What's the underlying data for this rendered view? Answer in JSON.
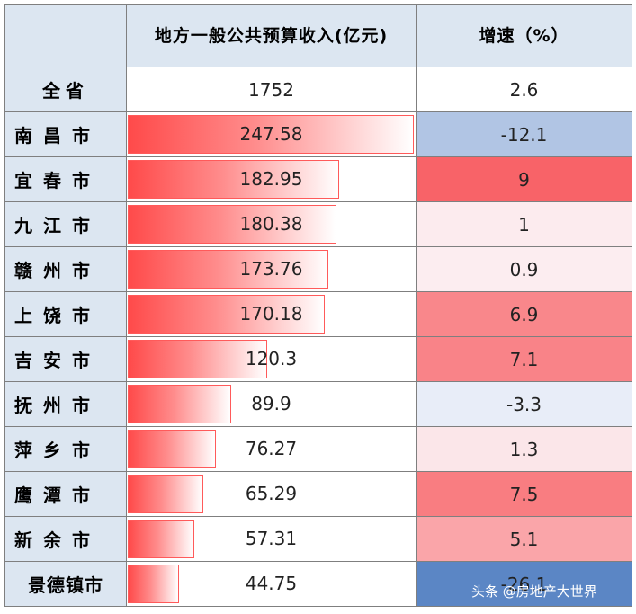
{
  "chart_data": {
    "type": "table",
    "columns": [
      "",
      "地方一般公共预算收入(亿元)",
      "增速（%）"
    ],
    "total": {
      "name": "全省",
      "revenue": "1752",
      "growth": "2.6"
    },
    "rows": [
      {
        "name": "南昌市",
        "revenue": 247.58,
        "revenue_text": "247.58",
        "growth": -12.1,
        "growth_text": "-12.1"
      },
      {
        "name": "宜春市",
        "revenue": 182.95,
        "revenue_text": "182.95",
        "growth": 9,
        "growth_text": "9"
      },
      {
        "name": "九江市",
        "revenue": 180.38,
        "revenue_text": "180.38",
        "growth": 1,
        "growth_text": "1"
      },
      {
        "name": "赣州市",
        "revenue": 173.76,
        "revenue_text": "173.76",
        "growth": 0.9,
        "growth_text": "0.9"
      },
      {
        "name": "上饶市",
        "revenue": 170.18,
        "revenue_text": "170.18",
        "growth": 6.9,
        "growth_text": "6.9"
      },
      {
        "name": "吉安市",
        "revenue": 120.3,
        "revenue_text": "120.3",
        "growth": 7.1,
        "growth_text": "7.1"
      },
      {
        "name": "抚州市",
        "revenue": 89.9,
        "revenue_text": "89.9",
        "growth": -3.3,
        "growth_text": "-3.3"
      },
      {
        "name": "萍乡市",
        "revenue": 76.27,
        "revenue_text": "76.27",
        "growth": 1.3,
        "growth_text": "1.3"
      },
      {
        "name": "鹰潭市",
        "revenue": 65.29,
        "revenue_text": "65.29",
        "growth": 7.5,
        "growth_text": "7.5"
      },
      {
        "name": "新余市",
        "revenue": 57.31,
        "revenue_text": "57.31",
        "growth": 5.1,
        "growth_text": "5.1"
      },
      {
        "name": "景德镇市",
        "revenue": 44.75,
        "revenue_text": "44.75",
        "growth": -26.1,
        "growth_text": "-26.1"
      }
    ]
  },
  "watermark": "头条 @房地产大世界",
  "colors": {
    "header_bg": "#dce6f1",
    "bar_start": "#ff4a4a",
    "positive_max": "#f86368",
    "negative_max": "#5b86c5"
  }
}
